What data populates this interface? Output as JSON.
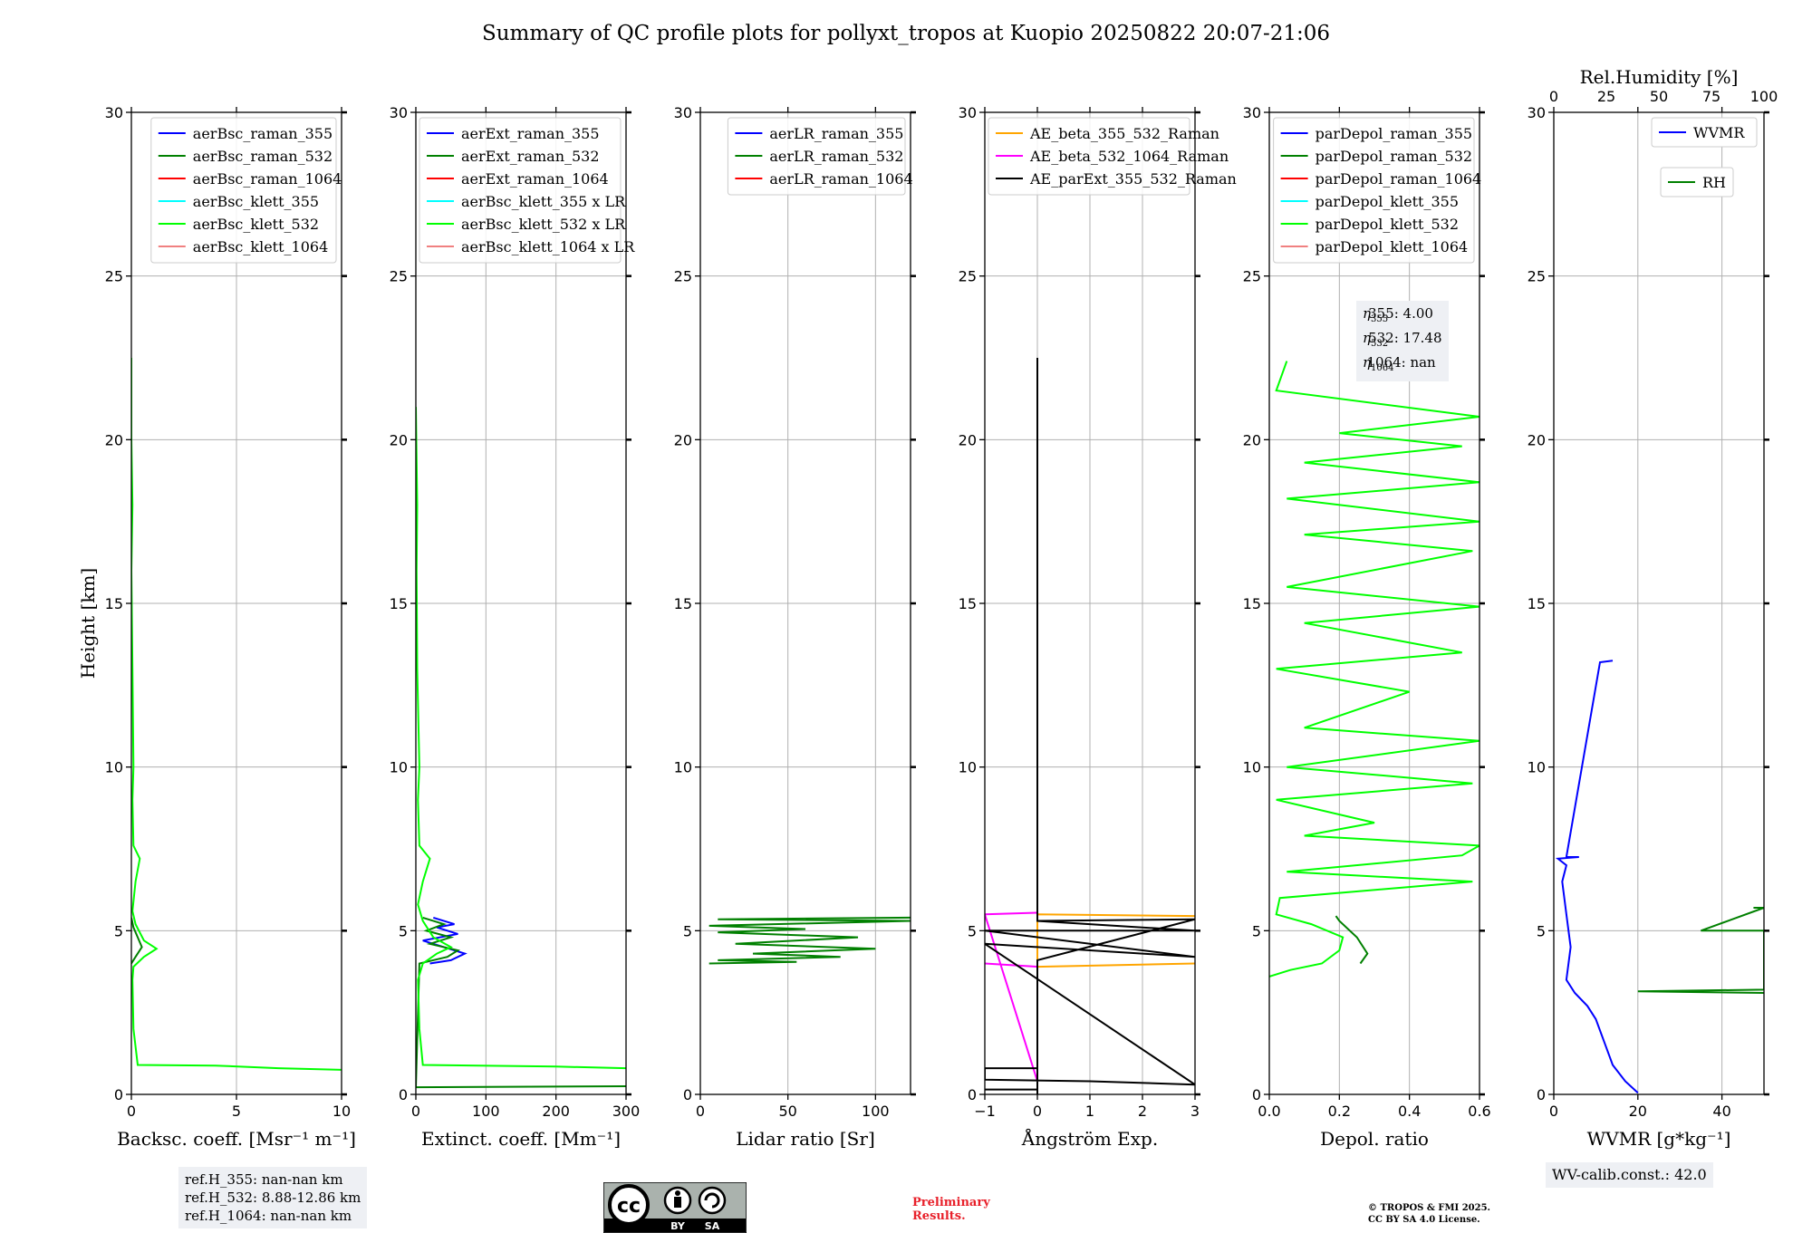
{
  "title": "Summary of QC profile plots for pollyxt_tropos at Kuopio 20250822 20:07-21:06",
  "ylabel": "Height [km]",
  "refh_box": [
    "ref.H_355: nan-nan km",
    "ref.H_532: 8.88-12.86 km",
    "ref.H_1064: nan-nan km"
  ],
  "eta_box": [
    "355: 4.00",
    "532: 17.48",
    "1064: nan"
  ],
  "wv_calib": "WV-calib.const.: 42.0",
  "preliminary": [
    "Preliminary",
    "Results."
  ],
  "copyright": [
    "© TROPOS & FMI 2025.",
    "CC BY SA 4.0 License."
  ],
  "cc_badge": {
    "cc": "cc",
    "by": "BY",
    "sa": "SA"
  },
  "chart_data": [
    {
      "type": "line",
      "xlabel": "Backsc. coeff. [Msr⁻¹ m⁻¹]",
      "xlim": [
        0,
        10
      ],
      "ylim": [
        0,
        30
      ],
      "xticks": [
        0,
        5,
        10
      ],
      "yticks": [
        0,
        5,
        10,
        15,
        20,
        25,
        30
      ],
      "grid": true,
      "legend_position": "top-right",
      "series": [
        {
          "name": "aerBsc_raman_355",
          "color": "#0000ff",
          "points": []
        },
        {
          "name": "aerBsc_raman_532",
          "color": "#008000",
          "points": [
            [
              0.0,
              4.0
            ],
            [
              0.2,
              4.2
            ],
            [
              0.5,
              4.5
            ],
            [
              0.3,
              4.8
            ],
            [
              0.1,
              5.1
            ],
            [
              0.0,
              5.4
            ]
          ]
        },
        {
          "name": "aerBsc_raman_1064",
          "color": "#ff0000",
          "points": []
        },
        {
          "name": "aerBsc_klett_355",
          "color": "#00ffff",
          "points": []
        },
        {
          "name": "aerBsc_klett_532",
          "color": "#00ff00",
          "points": [
            [
              10,
              0.75
            ],
            [
              7,
              0.8
            ],
            [
              4,
              0.88
            ],
            [
              0.3,
              0.9
            ],
            [
              0.1,
              2
            ],
            [
              0.05,
              3.5
            ],
            [
              0.1,
              3.9
            ],
            [
              0.6,
              4.2
            ],
            [
              1.2,
              4.45
            ],
            [
              0.6,
              4.7
            ],
            [
              0.2,
              5.2
            ],
            [
              0.05,
              5.6
            ],
            [
              0.2,
              6.5
            ],
            [
              0.4,
              7.2
            ],
            [
              0.1,
              7.6
            ],
            [
              0.05,
              9
            ],
            [
              0.1,
              10
            ],
            [
              0.05,
              13
            ],
            [
              0.0,
              16
            ],
            [
              0.05,
              18
            ],
            [
              0.0,
              20
            ],
            [
              0.0,
              22.5
            ]
          ]
        },
        {
          "name": "aerBsc_klett_1064",
          "color": "#f08080",
          "points": []
        }
      ]
    },
    {
      "type": "line",
      "xlabel": "Extinct. coeff. [Mm⁻¹]",
      "xlim": [
        0,
        300
      ],
      "ylim": [
        0,
        30
      ],
      "xticks": [
        0,
        100,
        200,
        300
      ],
      "yticks": [
        0,
        5,
        10,
        15,
        20,
        25,
        30
      ],
      "grid": true,
      "legend_position": "top-right",
      "series": [
        {
          "name": "aerExt_raman_355",
          "color": "#0000ff",
          "points": [
            [
              20,
              4.0
            ],
            [
              50,
              4.1
            ],
            [
              70,
              4.3
            ],
            [
              40,
              4.5
            ],
            [
              10,
              4.7
            ],
            [
              60,
              4.9
            ],
            [
              30,
              5.1
            ],
            [
              55,
              5.2
            ],
            [
              25,
              5.4
            ]
          ]
        },
        {
          "name": "aerExt_raman_532",
          "color": "#008000",
          "points": [
            [
              0,
              0.22
            ],
            [
              300,
              0.25
            ],
            [
              0,
              0.22
            ],
            [
              5,
              4.0
            ],
            [
              45,
              4.2
            ],
            [
              60,
              4.4
            ],
            [
              20,
              4.6
            ],
            [
              50,
              4.8
            ],
            [
              15,
              5.0
            ],
            [
              40,
              5.2
            ],
            [
              10,
              5.4
            ]
          ]
        },
        {
          "name": "aerExt_raman_1064",
          "color": "#ff0000",
          "points": []
        },
        {
          "name": "aerBsc_klett_355 x LR",
          "color": "#00ffff",
          "points": []
        },
        {
          "name": "aerBsc_klett_532 x LR",
          "color": "#00ff00",
          "points": [
            [
              300,
              0.8
            ],
            [
              200,
              0.85
            ],
            [
              10,
              0.9
            ],
            [
              5,
              2
            ],
            [
              3,
              3.5
            ],
            [
              10,
              4.0
            ],
            [
              30,
              4.3
            ],
            [
              50,
              4.5
            ],
            [
              25,
              4.8
            ],
            [
              10,
              5.3
            ],
            [
              3,
              5.8
            ],
            [
              10,
              6.5
            ],
            [
              20,
              7.2
            ],
            [
              5,
              7.6
            ],
            [
              3,
              9
            ],
            [
              5,
              10
            ],
            [
              2,
              13
            ],
            [
              1,
              16
            ],
            [
              2,
              18
            ],
            [
              0,
              21
            ]
          ]
        },
        {
          "name": "aerBsc_klett_1064 x LR",
          "color": "#f08080",
          "points": []
        }
      ]
    },
    {
      "type": "line",
      "xlabel": "Lidar ratio [Sr]",
      "xlim": [
        0,
        120
      ],
      "ylim": [
        0,
        30
      ],
      "xticks": [
        0,
        50,
        100
      ],
      "yticks": [
        0,
        5,
        10,
        15,
        20,
        25,
        30
      ],
      "grid": true,
      "legend_position": "top-right",
      "series": [
        {
          "name": "aerLR_raman_355",
          "color": "#0000ff",
          "points": []
        },
        {
          "name": "aerLR_raman_532",
          "color": "#008000",
          "points": [
            [
              5,
              4.0
            ],
            [
              55,
              4.05
            ],
            [
              10,
              4.1
            ],
            [
              80,
              4.2
            ],
            [
              30,
              4.3
            ],
            [
              100,
              4.45
            ],
            [
              20,
              4.6
            ],
            [
              90,
              4.8
            ],
            [
              10,
              4.95
            ],
            [
              60,
              5.05
            ],
            [
              5,
              5.15
            ],
            [
              120,
              5.3
            ],
            [
              10,
              5.35
            ],
            [
              120,
              5.4
            ]
          ]
        },
        {
          "name": "aerLR_raman_1064",
          "color": "#ff0000",
          "points": []
        }
      ]
    },
    {
      "type": "line",
      "xlabel": "Ångström Exp.",
      "xlim": [
        -1,
        3
      ],
      "ylim": [
        0,
        30
      ],
      "xticks": [
        -1,
        0,
        1,
        2,
        3
      ],
      "yticks": [
        0,
        5,
        10,
        15,
        20,
        25,
        30
      ],
      "grid": true,
      "legend_position": "top-right",
      "series": [
        {
          "name": "AE_beta_355_532_Raman",
          "color": "#ffa500",
          "points": [
            [
              0,
              3.9
            ],
            [
              3,
              4.0
            ],
            [
              0,
              3.9
            ],
            [
              0,
              5.5
            ],
            [
              3,
              5.45
            ]
          ]
        },
        {
          "name": "AE_beta_532_1064_Raman",
          "color": "#ff00ff",
          "points": [
            [
              -1,
              4.0
            ],
            [
              0,
              3.9
            ],
            [
              0,
              0.9
            ],
            [
              0,
              0.4
            ],
            [
              -1,
              5.5
            ],
            [
              0,
              5.55
            ]
          ]
        },
        {
          "name": "AE_parExt_355_532_Raman",
          "color": "#000000",
          "points": [
            [
              -1,
              0.15
            ],
            [
              0,
              0.15
            ],
            [
              0,
              0.8
            ],
            [
              -1,
              0.8
            ],
            [
              -1,
              0.45
            ],
            [
              1,
              0.4
            ],
            [
              3,
              0.3
            ],
            [
              -1,
              4.6
            ],
            [
              1,
              4.4
            ],
            [
              3,
              4.2
            ],
            [
              -1,
              5.0
            ],
            [
              3,
              5.0
            ],
            [
              0,
              5.3
            ],
            [
              0,
              22.5
            ],
            [
              0,
              5.3
            ],
            [
              3,
              5.35
            ],
            [
              0,
              4.1
            ],
            [
              0,
              0
            ]
          ]
        }
      ]
    },
    {
      "type": "line",
      "xlabel": "Depol. ratio",
      "xlim": [
        0,
        0.6
      ],
      "ylim": [
        0,
        30
      ],
      "xticks": [
        0.0,
        0.2,
        0.4,
        0.6
      ],
      "xtick_labels": [
        "0.0",
        "0.2",
        "0.4",
        "0.6"
      ],
      "yticks": [
        0,
        5,
        10,
        15,
        20,
        25,
        30
      ],
      "grid": true,
      "legend_position": "top-right",
      "series": [
        {
          "name": "parDepol_raman_355",
          "color": "#0000ff",
          "points": []
        },
        {
          "name": "parDepol_raman_532",
          "color": "#008000",
          "points": [
            [
              0.26,
              4.0
            ],
            [
              0.28,
              4.3
            ],
            [
              0.25,
              4.8
            ],
            [
              0.2,
              5.3
            ],
            [
              0.19,
              5.45
            ]
          ]
        },
        {
          "name": "parDepol_raman_1064",
          "color": "#ff0000",
          "points": []
        },
        {
          "name": "parDepol_klett_355",
          "color": "#00ffff",
          "points": []
        },
        {
          "name": "parDepol_klett_532",
          "color": "#00ff00",
          "points": [
            [
              0.0,
              3.6
            ],
            [
              0.06,
              3.8
            ],
            [
              0.15,
              4.0
            ],
            [
              0.2,
              4.4
            ],
            [
              0.21,
              4.8
            ],
            [
              0.12,
              5.2
            ],
            [
              0.02,
              5.5
            ],
            [
              0.03,
              6.0
            ],
            [
              0.58,
              6.5
            ],
            [
              0.05,
              6.8
            ],
            [
              0.55,
              7.3
            ],
            [
              0.6,
              7.6
            ],
            [
              0.1,
              7.9
            ],
            [
              0.3,
              8.3
            ],
            [
              0.02,
              9
            ],
            [
              0.58,
              9.5
            ],
            [
              0.05,
              10
            ],
            [
              0.6,
              10.8
            ],
            [
              0.1,
              11.2
            ],
            [
              0.4,
              12.3
            ],
            [
              0.02,
              13
            ],
            [
              0.55,
              13.5
            ],
            [
              0.1,
              14.4
            ],
            [
              0.6,
              14.9
            ],
            [
              0.05,
              15.5
            ],
            [
              0.58,
              16.6
            ],
            [
              0.1,
              17.1
            ],
            [
              0.6,
              17.5
            ],
            [
              0.05,
              18.2
            ],
            [
              0.6,
              18.7
            ],
            [
              0.1,
              19.3
            ],
            [
              0.55,
              19.8
            ],
            [
              0.2,
              20.2
            ],
            [
              0.6,
              20.7
            ],
            [
              0.02,
              21.5
            ],
            [
              0.05,
              22.4
            ]
          ]
        },
        {
          "name": "parDepol_klett_1064",
          "color": "#f08080",
          "points": []
        }
      ]
    },
    {
      "type": "line",
      "xlabel": "WVMR [g*kg⁻¹]",
      "x2label": "Rel.Humidity [%]",
      "xlim": [
        0,
        50
      ],
      "x2lim": [
        0,
        100
      ],
      "ylim": [
        0,
        30
      ],
      "xticks": [
        0,
        20,
        40
      ],
      "x2ticks": [
        0,
        25,
        50,
        75,
        100
      ],
      "yticks": [
        0,
        5,
        10,
        15,
        20,
        25,
        30
      ],
      "grid": true,
      "legend_position": "top-right",
      "series": [
        {
          "name": "WVMR",
          "axis": "x",
          "color": "#0000ff",
          "points": [
            [
              20,
              0.05
            ],
            [
              17,
              0.4
            ],
            [
              14,
              0.9
            ],
            [
              12,
              1.6
            ],
            [
              10,
              2.3
            ],
            [
              8,
              2.7
            ],
            [
              5,
              3.1
            ],
            [
              3,
              3.5
            ],
            [
              4,
              4.5
            ],
            [
              3,
              5.5
            ],
            [
              2,
              6.5
            ],
            [
              3,
              7.0
            ],
            [
              1,
              7.2
            ],
            [
              6,
              7.25
            ],
            [
              4,
              7.25
            ],
            [
              3,
              7.25
            ],
            [
              11,
              13.2
            ],
            [
              14,
              13.25
            ]
          ]
        },
        {
          "name": "RH",
          "axis": "x2",
          "color": "#008000",
          "points": [
            [
              100,
              3.1
            ],
            [
              40,
              3.15
            ],
            [
              100,
              3.2
            ],
            [
              100,
              5.0
            ],
            [
              70,
              5.0
            ],
            [
              100,
              5.7
            ],
            [
              95,
              5.7
            ]
          ]
        }
      ]
    }
  ]
}
